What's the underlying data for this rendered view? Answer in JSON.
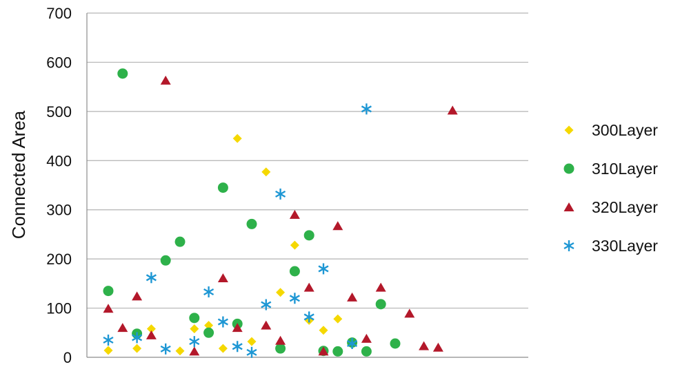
{
  "chart_data": {
    "type": "scatter",
    "title": "",
    "xlabel": "",
    "ylabel": "Connected Area",
    "ylim": [
      0,
      700
    ],
    "yticks": [
      0,
      100,
      200,
      300,
      400,
      500,
      600,
      700
    ],
    "xlim": [
      0,
      30
    ],
    "grid": true,
    "legend_position": "right",
    "series": [
      {
        "name": "300Layer",
        "marker": "diamond",
        "color": "#f5d800",
        "points": [
          [
            1,
            14
          ],
          [
            3,
            18
          ],
          [
            4,
            58
          ],
          [
            6,
            13
          ],
          [
            7,
            58
          ],
          [
            8,
            65
          ],
          [
            9,
            18
          ],
          [
            10,
            445
          ],
          [
            11,
            32
          ],
          [
            12,
            377
          ],
          [
            13,
            132
          ],
          [
            14,
            228
          ],
          [
            15,
            75
          ],
          [
            16,
            55
          ],
          [
            17,
            78
          ]
        ]
      },
      {
        "name": "310Layer",
        "marker": "circle",
        "color": "#2eb14a",
        "points": [
          [
            1,
            135
          ],
          [
            2,
            577
          ],
          [
            3,
            48
          ],
          [
            5,
            197
          ],
          [
            6,
            235
          ],
          [
            7,
            80
          ],
          [
            8,
            50
          ],
          [
            9,
            345
          ],
          [
            10,
            68
          ],
          [
            11,
            271
          ],
          [
            13,
            18
          ],
          [
            14,
            175
          ],
          [
            15,
            248
          ],
          [
            16,
            13
          ],
          [
            17,
            12
          ],
          [
            18,
            30
          ],
          [
            19,
            12
          ],
          [
            20,
            108
          ],
          [
            21,
            28
          ]
        ]
      },
      {
        "name": "320Layer",
        "marker": "triangle",
        "color": "#b3182a",
        "points": [
          [
            1,
            99
          ],
          [
            2,
            60
          ],
          [
            3,
            124
          ],
          [
            4,
            45
          ],
          [
            5,
            563
          ],
          [
            7,
            12
          ],
          [
            9,
            161
          ],
          [
            10,
            60
          ],
          [
            12,
            65
          ],
          [
            13,
            34
          ],
          [
            14,
            290
          ],
          [
            15,
            142
          ],
          [
            16,
            12
          ],
          [
            17,
            267
          ],
          [
            18,
            122
          ],
          [
            19,
            38
          ],
          [
            20,
            142
          ],
          [
            22,
            89
          ],
          [
            23,
            23
          ],
          [
            24,
            20
          ],
          [
            25,
            502
          ]
        ]
      },
      {
        "name": "330Layer",
        "marker": "asterisk",
        "color": "#1e97d4",
        "points": [
          [
            1,
            35
          ],
          [
            3,
            40
          ],
          [
            4,
            162
          ],
          [
            5,
            17
          ],
          [
            7,
            32
          ],
          [
            8,
            133
          ],
          [
            9,
            72
          ],
          [
            10,
            22
          ],
          [
            11,
            10
          ],
          [
            12,
            107
          ],
          [
            13,
            332
          ],
          [
            14,
            120
          ],
          [
            15,
            82
          ],
          [
            16,
            180
          ],
          [
            18,
            28
          ],
          [
            19,
            505
          ]
        ]
      }
    ]
  }
}
